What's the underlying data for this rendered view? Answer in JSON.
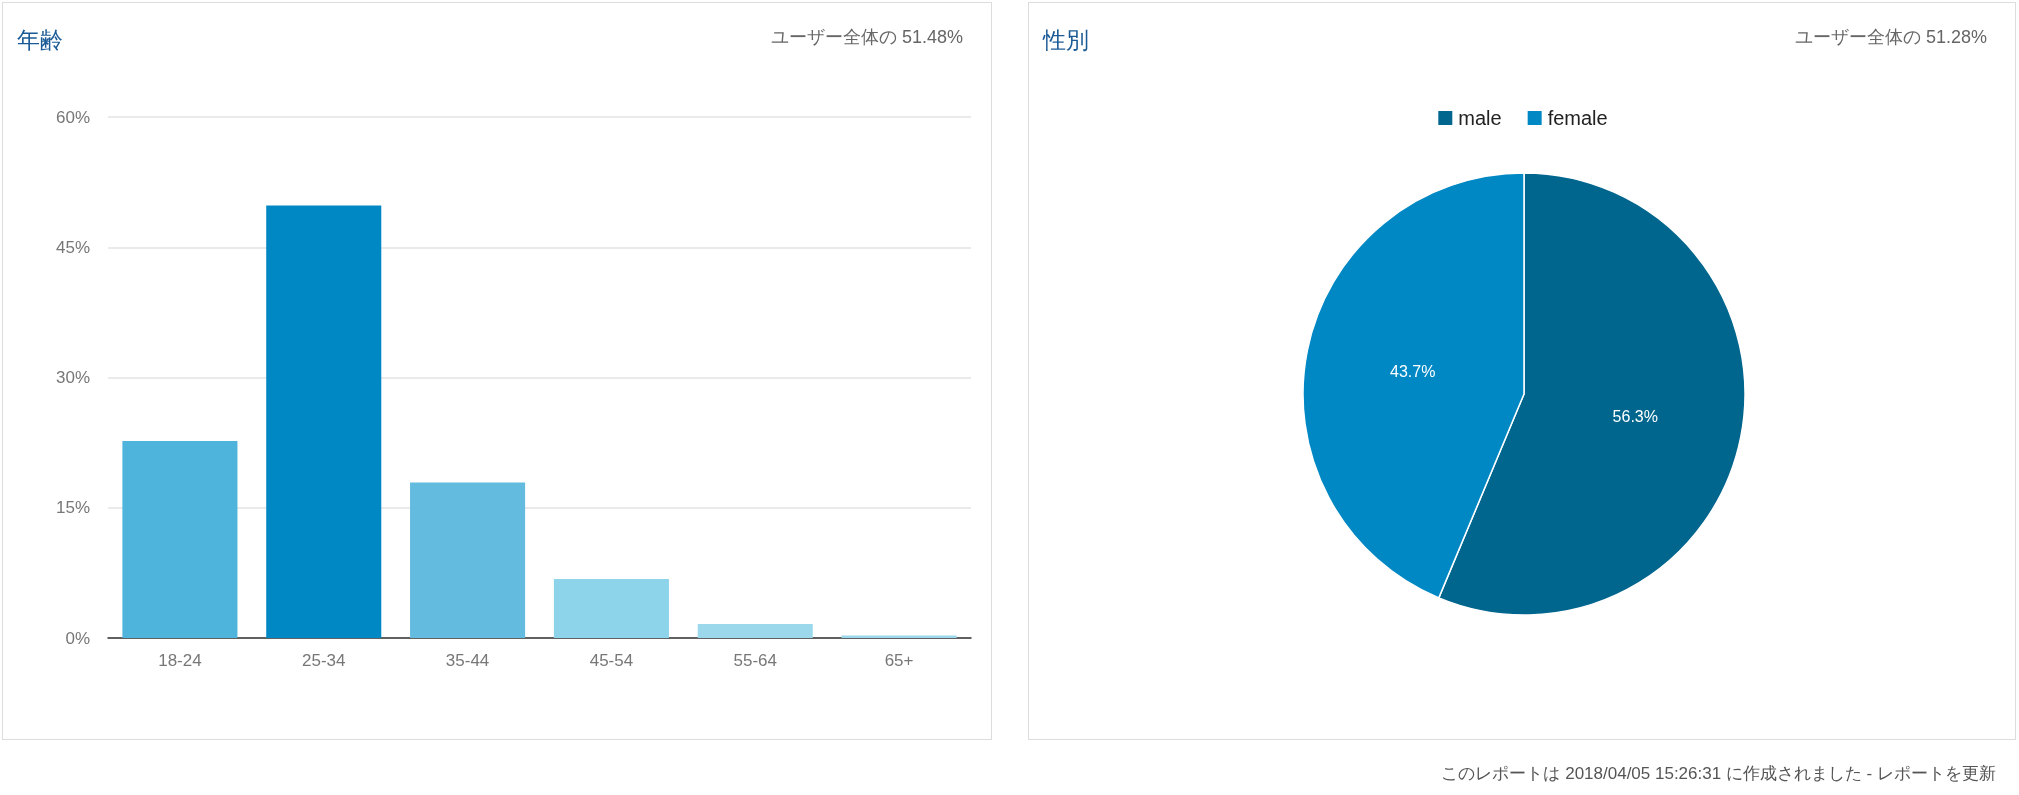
{
  "chart_data": [
    {
      "type": "bar",
      "title": "年齢",
      "subtitle": "ユーザー全体の 51.48%",
      "categories": [
        "18-24",
        "25-34",
        "35-44",
        "45-54",
        "55-64",
        "65+"
      ],
      "values": [
        22.7,
        49.8,
        17.9,
        6.8,
        1.6,
        0.3
      ],
      "colors": [
        "#4fb4dc",
        "#0088c4",
        "#63bce0",
        "#8dd3ea",
        "#9cd8ec",
        "#9cd8ec"
      ],
      "ylim": [
        0,
        60
      ],
      "yticks": [
        {
          "value": 0,
          "label": "0%"
        },
        {
          "value": 15,
          "label": "15%"
        },
        {
          "value": 30,
          "label": "30%"
        },
        {
          "value": 45,
          "label": "45%"
        },
        {
          "value": 60,
          "label": "60%"
        }
      ],
      "grid": "y"
    },
    {
      "type": "pie",
      "title": "性別",
      "subtitle": "ユーザー全体の 51.28%",
      "categories": [
        "male",
        "female"
      ],
      "values": [
        56.3,
        43.7
      ],
      "colors": [
        "#00668e",
        "#0088c4"
      ],
      "value_labels": [
        "56.3%",
        "43.7%"
      ],
      "legend": "top",
      "annotations": [
        "このレポートは 2018/04/05 15:26:31 に作成されました - レポートを更新"
      ]
    }
  ]
}
